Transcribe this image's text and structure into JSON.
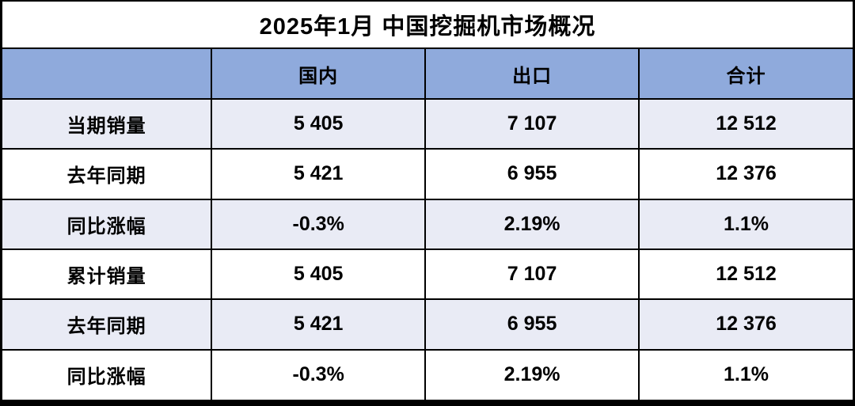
{
  "chart_data": {
    "type": "table",
    "title": "2025年1月 中国挖掘机市场概况",
    "columns": [
      "",
      "国内",
      "出口",
      "合计"
    ],
    "rows": [
      [
        "当期销量",
        "5 405",
        "7 107",
        "12 512"
      ],
      [
        "去年同期",
        "5 421",
        "6 955",
        "12 376"
      ],
      [
        "同比涨幅",
        "-0.3%",
        "2.19%",
        "1.1%"
      ],
      [
        "累计销量",
        "5 405",
        "7 107",
        "12 512"
      ],
      [
        "去年同期",
        "5 421",
        "6 955",
        "12 376"
      ],
      [
        "同比涨幅",
        "-0.3%",
        "2.19%",
        "1.1%"
      ]
    ],
    "layout": {
      "banded_rows": "1st, 3rd, 5th data rows shaded",
      "header_bg": "#8FAADC",
      "band_bg": "#E9EBF5",
      "row_bg": "#FFFFFF",
      "border_color": "#000000",
      "title_bg": "#FFFFFF",
      "text_color": "#000000"
    }
  }
}
